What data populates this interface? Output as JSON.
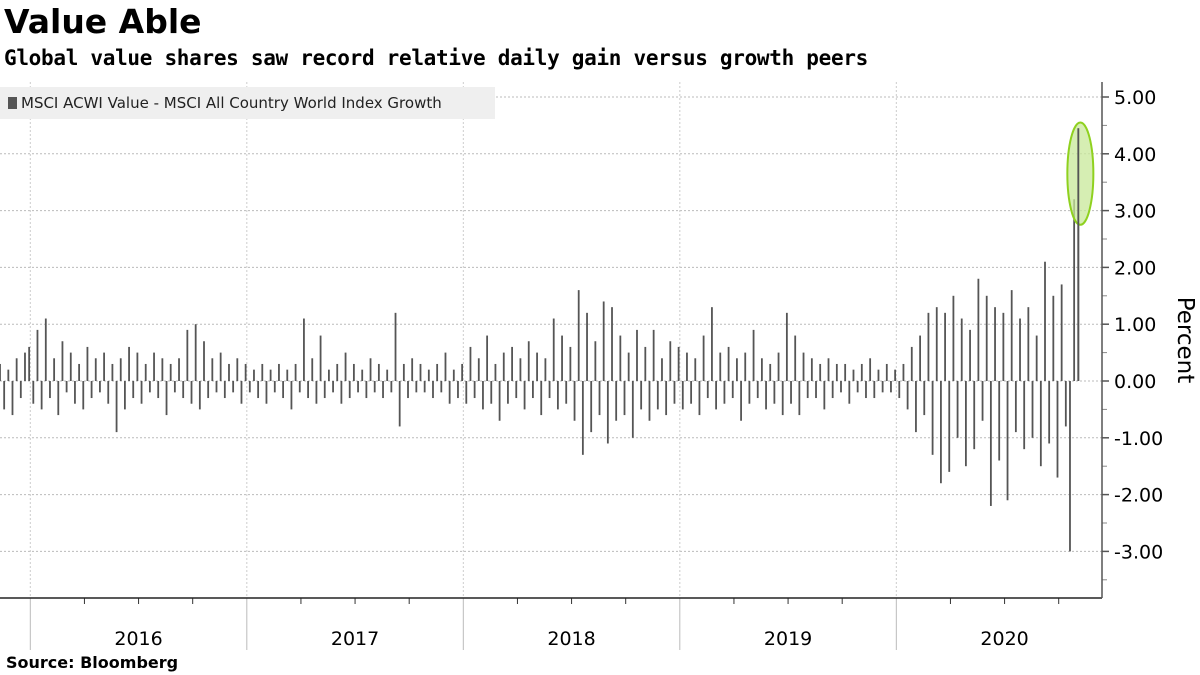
{
  "title": "Value Able",
  "subtitle": "Global value shares saw record relative daily gain versus growth peers",
  "source": "Source: Bloomberg",
  "colors": {
    "bar": "#555555",
    "highlight_fill": "#c8e89a",
    "highlight_stroke": "#8fd11f",
    "legend_bg": "#efefef"
  },
  "chart_data": {
    "type": "bar",
    "title": "Value Able",
    "ylabel": "Percent",
    "xlabel": "",
    "ylim": [
      -3.65,
      5.3
    ],
    "xlim": [
      2015.86,
      2020.95
    ],
    "y_ticks": [
      5,
      4,
      3,
      2,
      1,
      0,
      -1,
      -2,
      -3
    ],
    "y_tick_labels": [
      "5.00",
      "4.00",
      "3.00",
      "2.00",
      "1.00",
      "0.00",
      "-1.00",
      "-2.00",
      "-3.00"
    ],
    "x_tick_labels": [
      "2016",
      "2017",
      "2018",
      "2019",
      "2020"
    ],
    "grid": true,
    "legend": {
      "placement": "top-left",
      "entries": [
        "MSCI ACWI Value - MSCI All Country World Index Growth"
      ]
    },
    "series": [
      {
        "name": "MSCI ACWI Value - MSCI All Country World Index Growth",
        "x_start": 2015.86,
        "x_step_years": 0.01923,
        "values": [
          0.3,
          -0.5,
          0.2,
          -0.6,
          0.4,
          -0.3,
          0.5,
          0.6,
          -0.4,
          0.9,
          -0.5,
          1.1,
          -0.3,
          0.4,
          -0.6,
          0.7,
          -0.2,
          0.5,
          -0.4,
          0.3,
          -0.5,
          0.6,
          -0.3,
          0.4,
          -0.2,
          0.5,
          -0.4,
          0.3,
          -0.9,
          0.4,
          -0.5,
          0.6,
          -0.3,
          0.5,
          -0.4,
          0.3,
          -0.2,
          0.5,
          -0.3,
          0.4,
          -0.6,
          0.3,
          -0.2,
          0.4,
          -0.3,
          0.9,
          -0.4,
          1.0,
          -0.5,
          0.7,
          -0.3,
          0.4,
          -0.2,
          0.5,
          -0.3,
          0.3,
          -0.2,
          0.4,
          -0.4,
          0.3,
          -0.2,
          0.2,
          -0.3,
          0.3,
          -0.4,
          0.2,
          -0.2,
          0.3,
          -0.3,
          0.2,
          -0.5,
          0.3,
          -0.2,
          1.1,
          -0.3,
          0.4,
          -0.4,
          0.8,
          -0.3,
          0.2,
          -0.2,
          0.3,
          -0.4,
          0.5,
          -0.3,
          0.3,
          -0.2,
          0.2,
          -0.3,
          0.4,
          -0.2,
          0.3,
          -0.3,
          0.2,
          -0.2,
          1.2,
          -0.8,
          0.3,
          -0.3,
          0.4,
          -0.2,
          0.3,
          -0.2,
          0.2,
          -0.3,
          0.3,
          -0.2,
          0.5,
          -0.4,
          0.2,
          -0.3,
          0.3,
          -0.4,
          0.6,
          -0.3,
          0.4,
          -0.5,
          0.8,
          -0.4,
          0.3,
          -0.7,
          0.5,
          -0.4,
          0.6,
          -0.3,
          0.4,
          -0.5,
          0.7,
          -0.3,
          0.5,
          -0.6,
          0.4,
          -0.3,
          1.1,
          -0.5,
          0.8,
          -0.4,
          0.6,
          -0.7,
          1.6,
          -1.3,
          1.2,
          -0.9,
          0.7,
          -0.6,
          1.4,
          -1.1,
          1.3,
          -0.7,
          0.8,
          -0.6,
          0.5,
          -1.0,
          0.9,
          -0.5,
          0.6,
          -0.7,
          0.9,
          -0.5,
          0.4,
          -0.6,
          0.7,
          -0.4,
          0.6,
          -0.5,
          0.5,
          -0.4,
          0.4,
          -0.6,
          0.8,
          -0.3,
          1.3,
          -0.5,
          0.5,
          -0.4,
          0.6,
          -0.3,
          0.4,
          -0.7,
          0.5,
          -0.4,
          0.9,
          -0.3,
          0.4,
          -0.5,
          0.3,
          -0.4,
          0.5,
          -0.6,
          1.2,
          -0.4,
          0.8,
          -0.6,
          0.5,
          -0.3,
          0.4,
          -0.3,
          0.3,
          -0.5,
          0.4,
          -0.3,
          0.3,
          -0.2,
          0.3,
          -0.4,
          0.2,
          -0.2,
          0.3,
          -0.3,
          0.4,
          -0.3,
          0.2,
          -0.2,
          0.3,
          -0.2,
          0.2,
          -0.3,
          0.3,
          -0.5,
          0.6,
          -0.9,
          0.8,
          -0.6,
          1.2,
          -1.3,
          1.3,
          -1.8,
          1.2,
          -1.6,
          1.5,
          -1.0,
          1.1,
          -1.5,
          0.9,
          -1.2,
          1.8,
          -0.7,
          1.5,
          -2.2,
          1.3,
          -1.4,
          1.2,
          -2.1,
          1.6,
          -0.9,
          1.1,
          -1.2,
          1.3,
          -1.0,
          0.8,
          -1.5,
          2.1,
          -1.1,
          1.5,
          -1.7,
          1.7,
          -0.8,
          -3.0,
          3.2,
          4.45
        ]
      }
    ],
    "highlight": {
      "x": 2020.85,
      "y_range": [
        2.75,
        4.55
      ]
    }
  }
}
